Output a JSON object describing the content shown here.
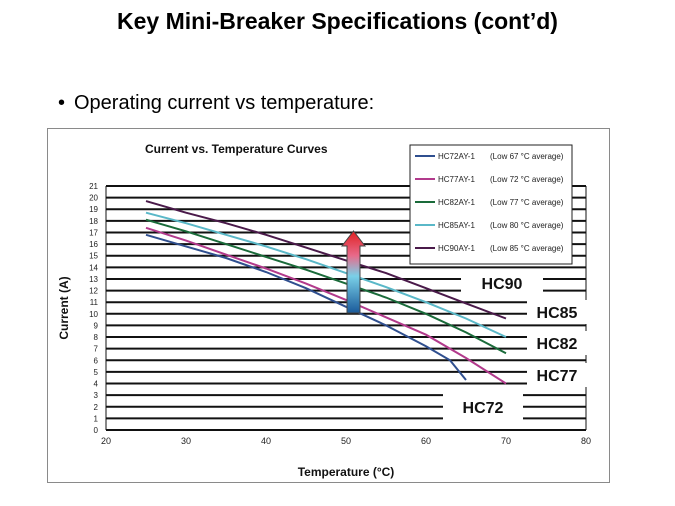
{
  "slide": {
    "title": "Key Mini-Breaker Specifications (cont’d)",
    "bullet": "Operating current vs temperature:"
  },
  "chart_data": {
    "type": "line",
    "title": "Current vs. Temperature Curves",
    "xlabel": "Temperature (°C)",
    "ylabel": "Current (A)",
    "xlim": [
      20,
      80
    ],
    "ylim": [
      0,
      21
    ],
    "xticks": [
      20,
      30,
      40,
      50,
      60,
      70,
      80
    ],
    "yticks": [
      0,
      1,
      2,
      3,
      4,
      5,
      6,
      7,
      8,
      9,
      10,
      11,
      12,
      13,
      14,
      15,
      16,
      17,
      18,
      19,
      20,
      21
    ],
    "grid": "horizontal",
    "legend_position": "top-right",
    "series": [
      {
        "name": "HC72AY-1",
        "note": "(Low 67 °C average)",
        "color": "#2f4f8f",
        "end_label": "HC72",
        "points": [
          [
            25,
            16.8
          ],
          [
            30,
            15.8
          ],
          [
            35,
            14.8
          ],
          [
            40,
            13.6
          ],
          [
            45,
            12.2
          ],
          [
            50,
            10.6
          ],
          [
            55,
            9.0
          ],
          [
            60,
            7.2
          ],
          [
            63,
            6.0
          ],
          [
            65,
            4.3
          ]
        ]
      },
      {
        "name": "HC77AY-1",
        "note": "(Low 72 °C average)",
        "color": "#b23a8c",
        "end_label": "HC77",
        "points": [
          [
            25,
            17.4
          ],
          [
            30,
            16.3
          ],
          [
            35,
            15.1
          ],
          [
            40,
            13.9
          ],
          [
            45,
            12.6
          ],
          [
            50,
            11.2
          ],
          [
            55,
            9.7
          ],
          [
            60,
            8.2
          ],
          [
            65,
            6.2
          ],
          [
            70,
            4.0
          ]
        ]
      },
      {
        "name": "HC82AY-1",
        "note": "(Low 77 °C average)",
        "color": "#1a6b3a",
        "end_label": "HC82",
        "points": [
          [
            25,
            18.1
          ],
          [
            30,
            17.1
          ],
          [
            35,
            16.0
          ],
          [
            40,
            14.9
          ],
          [
            45,
            13.8
          ],
          [
            50,
            12.6
          ],
          [
            55,
            11.4
          ],
          [
            60,
            10.0
          ],
          [
            65,
            8.4
          ],
          [
            70,
            6.6
          ]
        ]
      },
      {
        "name": "HC85AY-1",
        "note": "(Low 80 °C average)",
        "color": "#5ab8c8",
        "end_label": "HC85",
        "points": [
          [
            25,
            18.7
          ],
          [
            30,
            17.8
          ],
          [
            35,
            16.8
          ],
          [
            40,
            15.8
          ],
          [
            45,
            14.7
          ],
          [
            50,
            13.5
          ],
          [
            55,
            12.3
          ],
          [
            60,
            11.0
          ],
          [
            65,
            9.6
          ],
          [
            70,
            8.0
          ]
        ]
      },
      {
        "name": "HC90AY-1",
        "note": "(Low 85 °C average)",
        "color": "#4a1a4a",
        "end_label": "HC90",
        "points": [
          [
            25,
            19.7
          ],
          [
            30,
            18.7
          ],
          [
            35,
            17.8
          ],
          [
            40,
            16.8
          ],
          [
            45,
            15.7
          ],
          [
            50,
            14.6
          ],
          [
            55,
            13.5
          ],
          [
            60,
            12.2
          ],
          [
            65,
            10.9
          ],
          [
            70,
            9.6
          ]
        ]
      }
    ]
  }
}
